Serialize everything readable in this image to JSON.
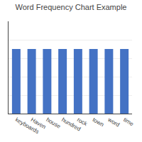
{
  "chart_data": {
    "type": "bar",
    "title": "Word Frequency Chart Example",
    "categories": [
      "keyboards",
      "Haven",
      "house",
      "hundred",
      "rock",
      "town",
      "word",
      "time"
    ],
    "values": [
      7,
      7,
      7,
      7,
      7,
      7,
      7,
      7
    ],
    "color": "#4472C4",
    "ylim": [
      0,
      10
    ],
    "yticks": [
      2,
      4,
      6,
      8,
      10
    ],
    "grid": true,
    "tick_labels": "x"
  }
}
